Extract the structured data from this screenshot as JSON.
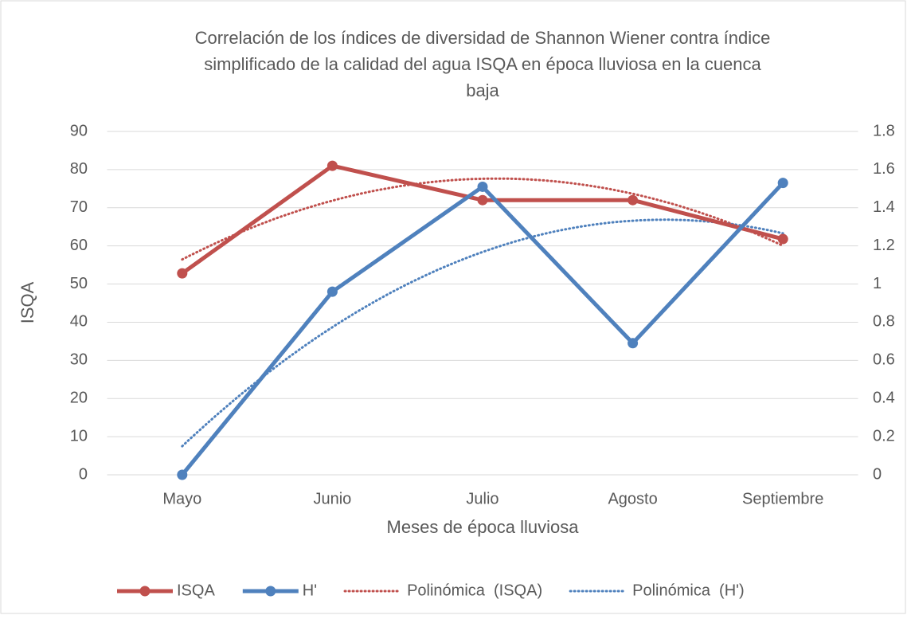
{
  "chart_data": {
    "type": "line",
    "title": [
      "Correlación de los índices de diversidad de Shannon Wiener contra índice",
      "simplificado de la calidad del agua ISQA en época  lluviosa en la cuenca",
      "baja"
    ],
    "xlabel": "Meses de época lluviosa",
    "ylabel": "ISQA",
    "categories": [
      "Mayo",
      "Junio",
      "Julio",
      "Agosto",
      "Septiembre"
    ],
    "series": [
      {
        "name": "ISQA",
        "color": "#c0504d",
        "values": [
          52.8,
          81,
          72,
          72,
          61.8
        ]
      },
      {
        "name": "H'",
        "color": "#4f81bd",
        "axis": "y2",
        "values": [
          0,
          0.96,
          1.51,
          0.69,
          1.53
        ]
      }
    ],
    "trendlines": [
      {
        "name": "Polinómica  (ISQA)",
        "series": 0,
        "order": 2,
        "color": "#c0504d"
      },
      {
        "name": "Polinómica  (H')",
        "series": 1,
        "order": 2,
        "color": "#4f81bd"
      }
    ],
    "ylim": [
      0,
      90
    ],
    "yticks": [
      0,
      10,
      20,
      30,
      40,
      50,
      60,
      70,
      80,
      90
    ],
    "y2lim": [
      0,
      1.8
    ],
    "y2ticks": [
      0,
      0.2,
      0.4,
      0.6,
      0.8,
      1,
      1.2,
      1.4,
      1.6,
      1.8
    ],
    "grid": true,
    "legend": "bottom"
  }
}
